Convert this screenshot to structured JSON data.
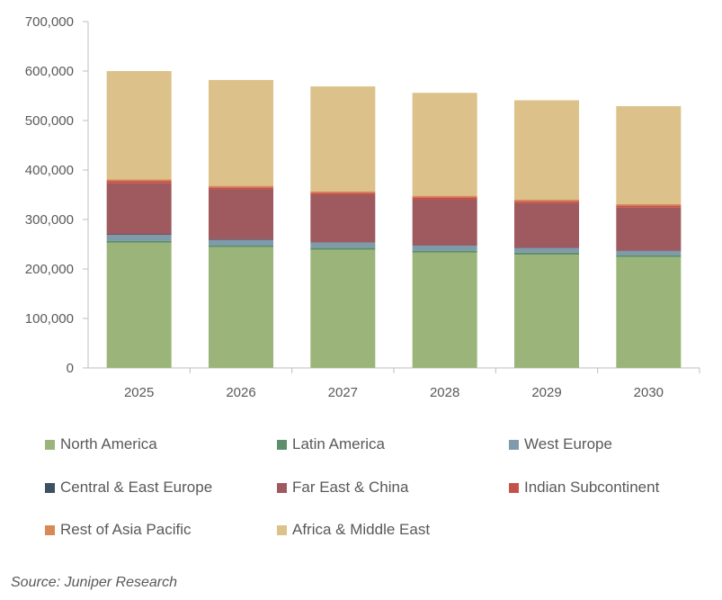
{
  "chart_data": {
    "type": "bar",
    "stacked": true,
    "categories": [
      "2025",
      "2026",
      "2027",
      "2028",
      "2029",
      "2030"
    ],
    "ylim": [
      0,
      700000
    ],
    "yticks": [
      0,
      100000,
      200000,
      300000,
      400000,
      500000,
      600000,
      700000
    ],
    "ytick_labels": [
      "0",
      "100,000",
      "200,000",
      "300,000",
      "400,000",
      "500,000",
      "600,000",
      "700,000"
    ],
    "legend_position": "bottom",
    "series": [
      {
        "name": "North America",
        "color": "#9BB47A",
        "values": [
          253000,
          244000,
          239000,
          233000,
          229000,
          224000
        ]
      },
      {
        "name": "Latin America",
        "color": "#5E8F6A",
        "values": [
          4000,
          4000,
          4000,
          4000,
          4000,
          4000
        ]
      },
      {
        "name": "West Europe",
        "color": "#7F9AAB",
        "values": [
          12000,
          11000,
          10000,
          10000,
          9000,
          8000
        ]
      },
      {
        "name": "Central & East Europe",
        "color": "#3E5161",
        "values": [
          1000,
          1000,
          1000,
          1000,
          1000,
          1000
        ]
      },
      {
        "name": "Far East & China",
        "color": "#9E5A5F",
        "values": [
          103000,
          101000,
          96000,
          92000,
          90000,
          87000
        ]
      },
      {
        "name": "Indian Subcontinent",
        "color": "#C4524A",
        "values": [
          5000,
          4000,
          4000,
          5000,
          4000,
          4000
        ]
      },
      {
        "name": "Rest of Asia Pacific",
        "color": "#D88955",
        "values": [
          3000,
          3000,
          3000,
          3000,
          3000,
          3000
        ]
      },
      {
        "name": "Africa & Middle East",
        "color": "#DCC28A",
        "values": [
          219000,
          214000,
          212000,
          208000,
          201000,
          198000
        ]
      }
    ]
  },
  "source": "Source: Juniper Research"
}
